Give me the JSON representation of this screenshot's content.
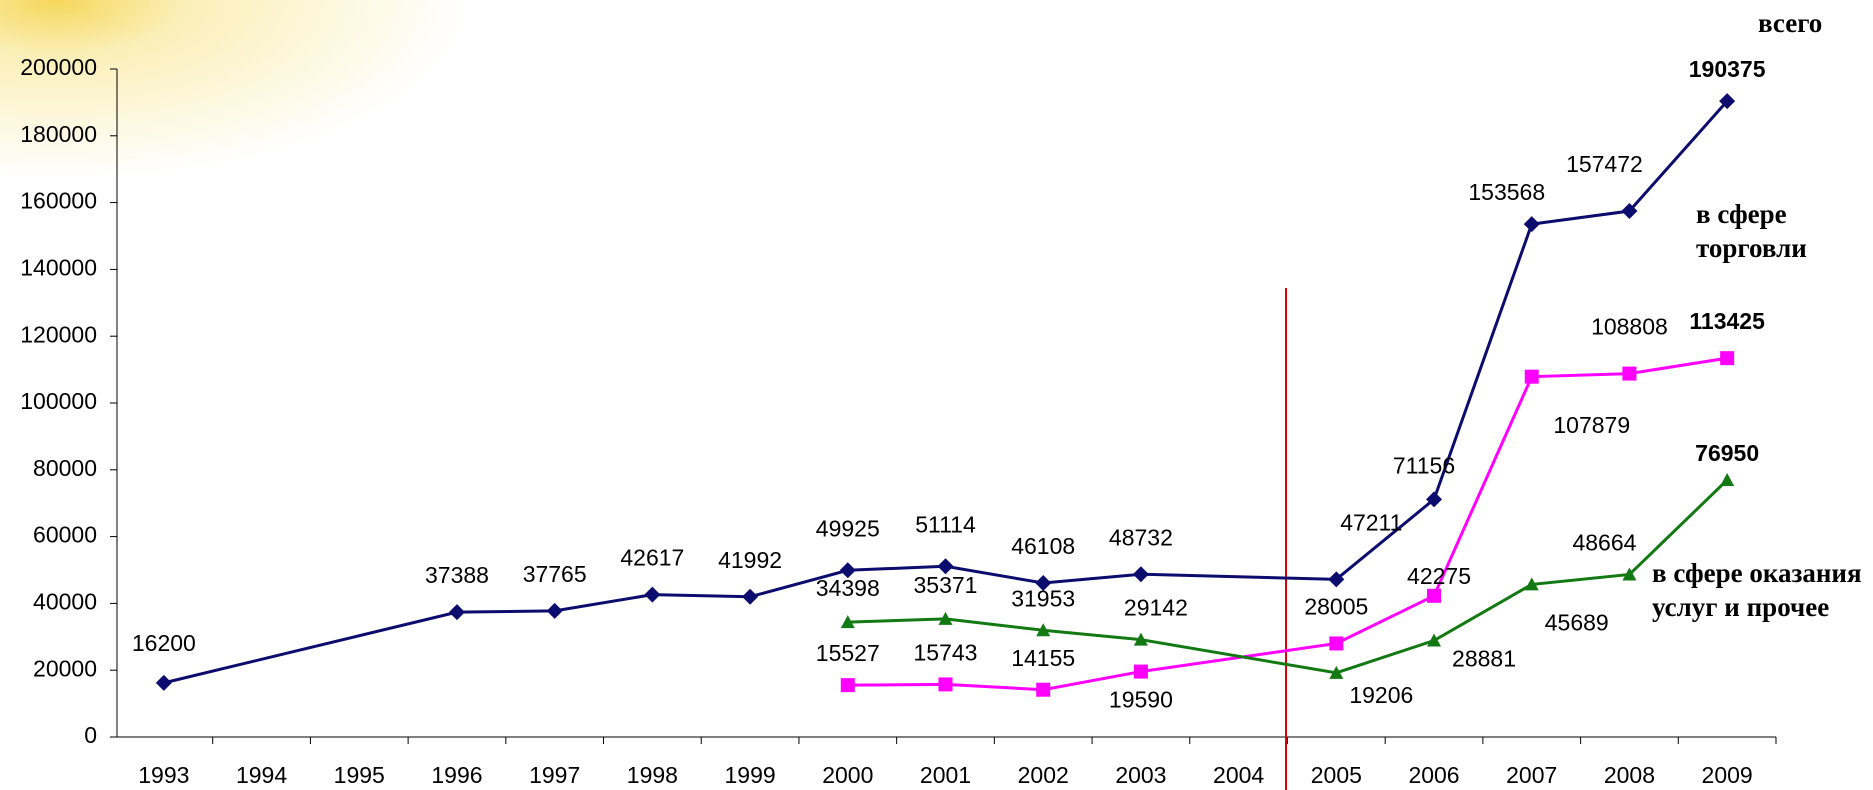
{
  "chart_data": {
    "type": "line",
    "xlim": [
      1992.5,
      2009.5
    ],
    "xticks": [
      1993,
      1994,
      1995,
      1996,
      1997,
      1998,
      1999,
      2000,
      2001,
      2002,
      2003,
      2004,
      2005,
      2006,
      2007,
      2008,
      2009
    ],
    "ylim": [
      0,
      200000
    ],
    "yticks": [
      0,
      20000,
      40000,
      60000,
      80000,
      100000,
      120000,
      140000,
      160000,
      180000,
      200000
    ],
    "grid": false,
    "series": [
      {
        "name": "всего",
        "color": "#0c0c6e",
        "marker": "diamond",
        "x": [
          1993,
          1996,
          1997,
          1998,
          1999,
          2000,
          2001,
          2002,
          2003,
          2005,
          2006,
          2007,
          2008,
          2009
        ],
        "values": [
          16200,
          37388,
          37765,
          42617,
          41992,
          49925,
          51114,
          46108,
          48732,
          47211,
          71156,
          153568,
          157472,
          190375
        ]
      },
      {
        "name": "в сфере торговли",
        "color": "#ff00ff",
        "marker": "square",
        "x": [
          2000,
          2001,
          2002,
          2003,
          2005,
          2006,
          2007,
          2008,
          2009
        ],
        "values": [
          15527,
          15743,
          14155,
          19590,
          28005,
          42275,
          107879,
          108808,
          113425
        ]
      },
      {
        "name": "в сфере оказания услуг и прочее",
        "color": "#137a13",
        "marker": "triangle",
        "x": [
          2000,
          2001,
          2002,
          2003,
          2005,
          2006,
          2007,
          2008,
          2009
        ],
        "values": [
          34398,
          35371,
          31953,
          29142,
          19206,
          28881,
          45689,
          48664,
          76950
        ]
      }
    ]
  }
}
